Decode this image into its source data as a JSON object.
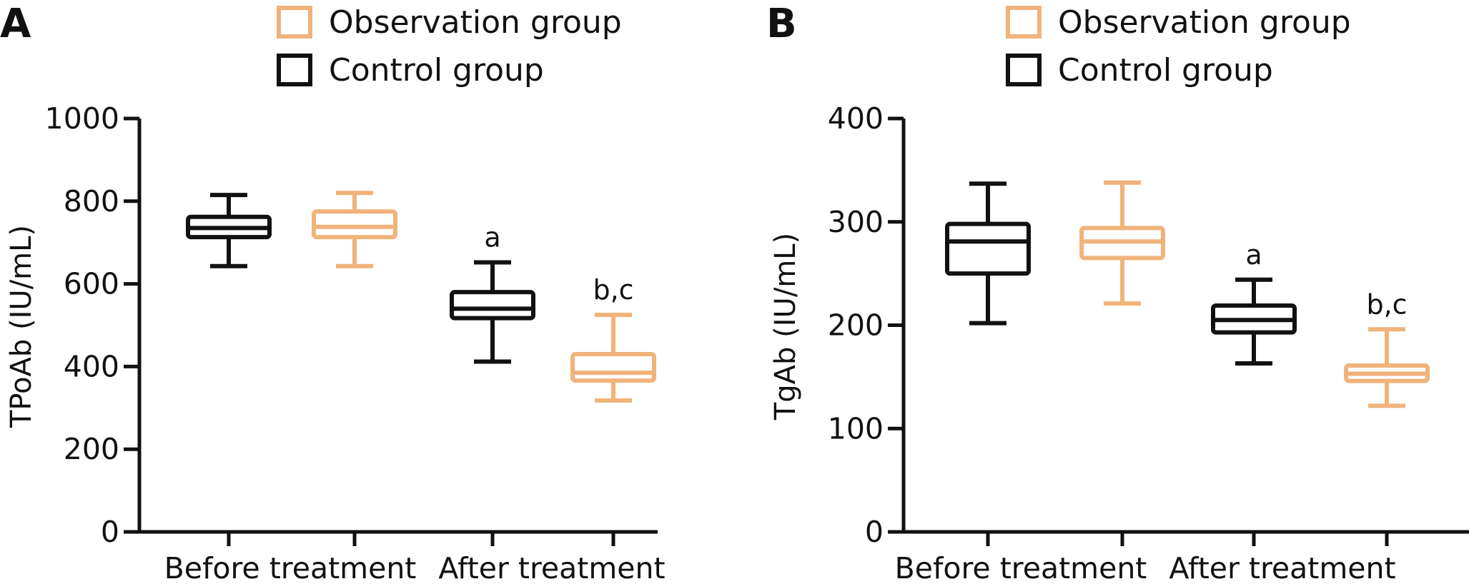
{
  "colors": {
    "observation": "#F0B37A",
    "control": "#111111"
  },
  "chart_data": [
    {
      "panel": "A",
      "type": "box",
      "legend": [
        "Observation group",
        "Control group"
      ],
      "ylabel": "TPoAb (IU/mL)",
      "ylim": [
        0,
        1000
      ],
      "yticks": [
        0,
        200,
        400,
        600,
        800,
        1000
      ],
      "categories": [
        "Before treatment",
        "After treatment"
      ],
      "series": [
        {
          "name": "Control group",
          "color": "#111111",
          "boxes": [
            {
              "category": "Before treatment",
              "min": 643,
              "q1": 713,
              "median": 735,
              "q3": 762,
              "max": 815
            },
            {
              "category": "After treatment",
              "min": 412,
              "q1": 517,
              "median": 540,
              "q3": 580,
              "max": 652
            }
          ]
        },
        {
          "name": "Observation group",
          "color": "#F0B37A",
          "boxes": [
            {
              "category": "Before treatment",
              "min": 643,
              "q1": 713,
              "median": 738,
              "q3": 775,
              "max": 820
            },
            {
              "category": "After treatment",
              "min": 318,
              "q1": 366,
              "median": 385,
              "q3": 430,
              "max": 525
            }
          ]
        }
      ],
      "annotations": [
        {
          "category": "After treatment",
          "series": "Control group",
          "text": "a"
        },
        {
          "category": "After treatment",
          "series": "Observation group",
          "text": "b,c"
        }
      ]
    },
    {
      "panel": "B",
      "type": "box",
      "legend": [
        "Observation group",
        "Control group"
      ],
      "ylabel": "TgAb (IU/mL)",
      "ylim": [
        0,
        400
      ],
      "yticks": [
        0,
        100,
        200,
        300,
        400
      ],
      "categories": [
        "Before treatment",
        "After treatment"
      ],
      "series": [
        {
          "name": "Control group",
          "color": "#111111",
          "boxes": [
            {
              "category": "Before treatment",
              "min": 202,
              "q1": 250,
              "median": 281,
              "q3": 298,
              "max": 337
            },
            {
              "category": "After treatment",
              "min": 163,
              "q1": 193,
              "median": 205,
              "q3": 219,
              "max": 244
            }
          ]
        },
        {
          "name": "Observation group",
          "color": "#F0B37A",
          "boxes": [
            {
              "category": "Before treatment",
              "min": 221,
              "q1": 265,
              "median": 281,
              "q3": 294,
              "max": 338
            },
            {
              "category": "After treatment",
              "min": 122,
              "q1": 146,
              "median": 153,
              "q3": 161,
              "max": 196
            }
          ]
        }
      ],
      "annotations": [
        {
          "category": "After treatment",
          "series": "Control group",
          "text": "a"
        },
        {
          "category": "After treatment",
          "series": "Observation group",
          "text": "b,c"
        }
      ]
    }
  ]
}
